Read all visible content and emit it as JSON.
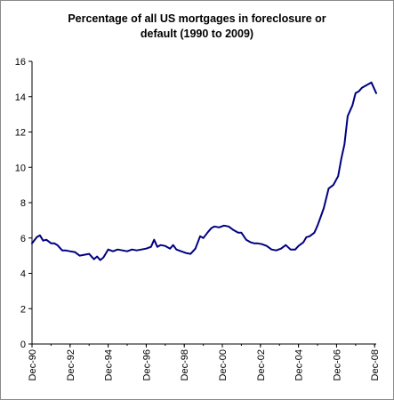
{
  "chart_data": {
    "type": "line",
    "title_line1": "Percentage of all US mortgages in foreclosure or",
    "title_line2": "default (1990 to 2009)",
    "xlabel": "",
    "ylabel": "",
    "x_ticks": [
      "Dec-90",
      "Dec-92",
      "Dec-94",
      "Dec-96",
      "Dec-98",
      "Dec-00",
      "Dec-02",
      "Dec-04",
      "Dec-06",
      "Dec-08"
    ],
    "y_ticks": [
      0,
      2,
      4,
      6,
      8,
      10,
      12,
      14,
      16
    ],
    "ylim": [
      0,
      16
    ],
    "xlim": [
      1990.917,
      2009.0
    ],
    "grid": false,
    "legend": "none",
    "line_color": "#000080",
    "series": [
      {
        "x": [
          1990.917,
          1991.167,
          1991.333,
          1991.5,
          1991.667,
          1991.917,
          1992.083,
          1992.25,
          1992.5,
          1992.667,
          1992.917,
          1993.167,
          1993.417,
          1993.667,
          1993.917,
          1994.167,
          1994.333,
          1994.5,
          1994.667,
          1994.917,
          1995.167,
          1995.417,
          1995.667,
          1995.917,
          1996.167,
          1996.417,
          1996.667,
          1996.917,
          1997.167,
          1997.333,
          1997.5,
          1997.667,
          1997.917,
          1998.167,
          1998.333,
          1998.5,
          1998.75,
          1999.0,
          1999.25,
          1999.5,
          1999.75,
          1999.917,
          2000.167,
          2000.333,
          2000.5,
          2000.75,
          2001.0,
          2001.25,
          2001.5,
          2001.75,
          2001.917,
          2002.167,
          2002.417,
          2002.583,
          2002.75,
          2003.0,
          2003.25,
          2003.5,
          2003.75,
          2004.0,
          2004.25,
          2004.5,
          2004.75,
          2004.917,
          2005.167,
          2005.333,
          2005.5,
          2005.75,
          2005.917,
          2006.083,
          2006.25,
          2006.5,
          2006.75,
          2007.0,
          2007.167,
          2007.333,
          2007.5,
          2007.75,
          2007.917,
          2008.083,
          2008.25,
          2008.417,
          2008.583,
          2008.75,
          2009.0
        ],
        "values": [
          5.7,
          6.05,
          6.15,
          5.85,
          5.9,
          5.7,
          5.7,
          5.6,
          5.3,
          5.3,
          5.25,
          5.2,
          5.0,
          5.05,
          5.1,
          4.8,
          4.95,
          4.75,
          4.9,
          5.35,
          5.25,
          5.35,
          5.3,
          5.25,
          5.35,
          5.3,
          5.35,
          5.4,
          5.5,
          5.9,
          5.5,
          5.6,
          5.55,
          5.4,
          5.6,
          5.35,
          5.25,
          5.15,
          5.1,
          5.4,
          6.1,
          6.0,
          6.35,
          6.55,
          6.65,
          6.6,
          6.7,
          6.65,
          6.45,
          6.3,
          6.3,
          5.9,
          5.75,
          5.7,
          5.7,
          5.65,
          5.55,
          5.35,
          5.3,
          5.4,
          5.6,
          5.35,
          5.35,
          5.55,
          5.75,
          6.05,
          6.1,
          6.3,
          6.7,
          7.2,
          7.7,
          8.8,
          9.0,
          9.5,
          10.5,
          11.3,
          12.9,
          13.5,
          14.2,
          14.3,
          14.5,
          14.6,
          14.7,
          14.8,
          14.2
        ]
      }
    ]
  }
}
